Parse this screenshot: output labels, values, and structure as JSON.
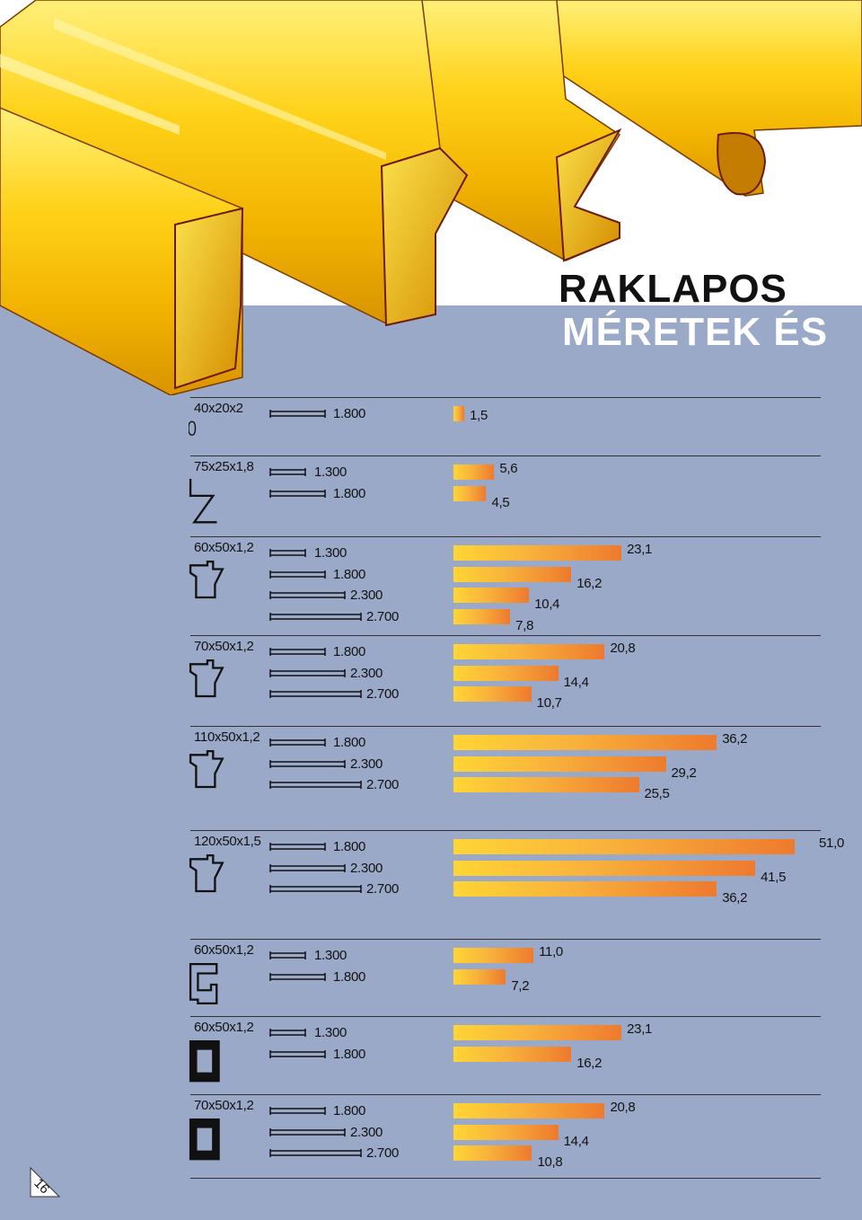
{
  "header": {
    "title": "RAKLAPOS",
    "subtitle": "MÉRETEK ÉS"
  },
  "page_number": "16",
  "profiles": [
    {
      "name": "40x20x2",
      "icon": "oval-tube-profile-icon",
      "rows": [
        {
          "length": "1.800",
          "value": "1,5",
          "v": 1.5
        }
      ]
    },
    {
      "name": "75x25x1,8",
      "icon": "z-profile-icon",
      "rows": [
        {
          "length": "1.300",
          "value": "5,6",
          "v": 5.6
        },
        {
          "length": "1.800",
          "value": "4,5",
          "v": 4.5
        }
      ]
    },
    {
      "name": "60x50x1,2",
      "icon": "open-beam-profile-icon",
      "rows": [
        {
          "length": "1.300",
          "value": "23,1",
          "v": 23.1
        },
        {
          "length": "1.800",
          "value": "16,2",
          "v": 16.2
        },
        {
          "length": "2.300",
          "value": "10,4",
          "v": 10.4
        },
        {
          "length": "2.700",
          "value": "7,8",
          "v": 7.8
        }
      ]
    },
    {
      "name": "70x50x1,2",
      "icon": "open-beam-profile-icon",
      "rows": [
        {
          "length": "1.800",
          "value": "20,8",
          "v": 20.8
        },
        {
          "length": "2.300",
          "value": "14,4",
          "v": 14.4
        },
        {
          "length": "2.700",
          "value": "10,7",
          "v": 10.7
        }
      ]
    },
    {
      "name": "110x50x1,2",
      "icon": "open-beam-profile-icon",
      "rows": [
        {
          "length": "1.800",
          "value": "36,2",
          "v": 36.2
        },
        {
          "length": "2.300",
          "value": "29,2",
          "v": 29.2
        },
        {
          "length": "2.700",
          "value": "25,5",
          "v": 25.5
        }
      ]
    },
    {
      "name": "120x50x1,5",
      "icon": "open-beam-profile-icon",
      "rows": [
        {
          "length": "1.800",
          "value": "51,0",
          "v": 51.0
        },
        {
          "length": "2.300",
          "value": "41,5",
          "v": 41.5
        },
        {
          "length": "2.700",
          "value": "36,2",
          "v": 36.2
        }
      ]
    },
    {
      "name": "60x50x1,2",
      "icon": "c-channel-profile-icon",
      "rows": [
        {
          "length": "1.300",
          "value": "11,0",
          "v": 11.0
        },
        {
          "length": "1.800",
          "value": "7,2",
          "v": 7.2
        }
      ]
    },
    {
      "name": "60x50x1,2",
      "icon": "closed-box-profile-icon",
      "rows": [
        {
          "length": "1.300",
          "value": "23,1",
          "v": 23.1
        },
        {
          "length": "1.800",
          "value": "16,2",
          "v": 16.2
        }
      ]
    },
    {
      "name": "70x50x1,2",
      "icon": "closed-box-profile-icon",
      "rows": [
        {
          "length": "1.800",
          "value": "20,8",
          "v": 20.8
        },
        {
          "length": "2.300",
          "value": "14,4",
          "v": 14.4
        },
        {
          "length": "2.700",
          "value": "10,8",
          "v": 10.8
        }
      ]
    }
  ]
}
